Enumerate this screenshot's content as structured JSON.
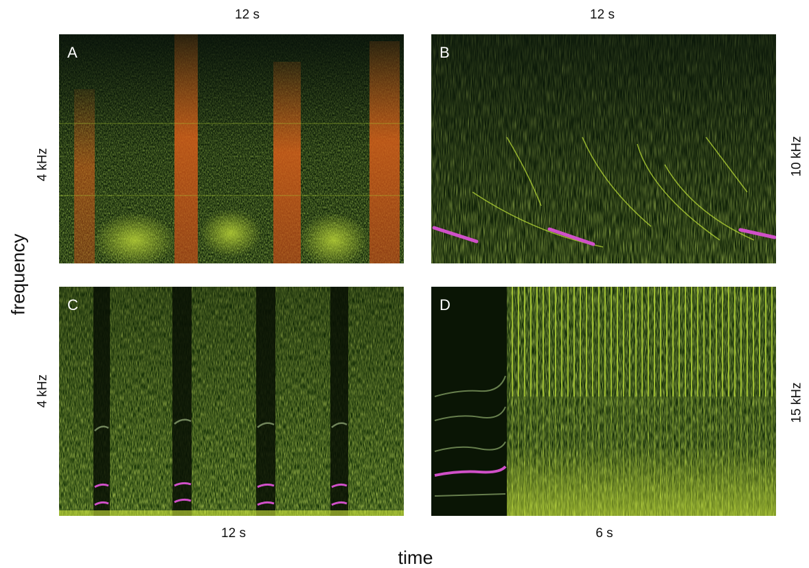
{
  "axes": {
    "y_title": "frequency",
    "x_title": "time"
  },
  "panels": [
    {
      "letter": "A",
      "duration": "12 s",
      "freq_max": "4 kHz"
    },
    {
      "letter": "B",
      "duration": "12 s",
      "freq_max": "10 kHz"
    },
    {
      "letter": "C",
      "duration": "12 s",
      "freq_max": "4 kHz"
    },
    {
      "letter": "D",
      "duration": "6 s",
      "freq_max": "15 kHz"
    }
  ],
  "colors": {
    "background": "#0c1a05",
    "energy_low": "#3f6a10",
    "energy_high": "#d9ef4a",
    "harmonic_orange": "#e0601a",
    "highlight_magenta": "#d050c8"
  }
}
